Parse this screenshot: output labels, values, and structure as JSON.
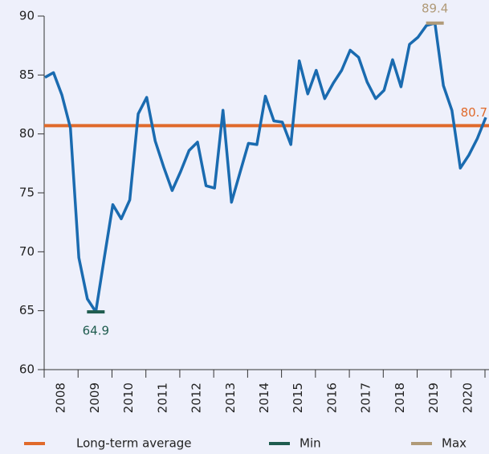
{
  "chart_data": {
    "type": "line",
    "categories": [
      "2008",
      "2009",
      "2010",
      "2011",
      "2012",
      "2013",
      "2014",
      "2015",
      "2016",
      "2017",
      "2018",
      "2019",
      "2020"
    ],
    "x": [
      2008,
      2008.25,
      2008.5,
      2008.75,
      2009,
      2009.25,
      2009.5,
      2009.75,
      2010,
      2010.25,
      2010.5,
      2010.75,
      2011,
      2011.25,
      2011.5,
      2011.75,
      2012,
      2012.25,
      2012.5,
      2012.75,
      2013,
      2013.25,
      2013.5,
      2013.75,
      2014,
      2014.25,
      2014.5,
      2014.75,
      2015,
      2015.25,
      2015.5,
      2015.75,
      2016,
      2016.25,
      2016.5,
      2016.75,
      2017,
      2017.25,
      2017.5,
      2017.75,
      2018,
      2018.25,
      2018.5,
      2018.75,
      2019,
      2019.25,
      2019.5,
      2019.75,
      2020,
      2020.25,
      2020.5,
      2020.75,
      2021
    ],
    "series": [
      {
        "color": "#1a6bb0",
        "values": [
          84.8,
          85.2,
          83.3,
          80.5,
          69.5,
          66,
          64.9,
          69.5,
          74,
          72.8,
          74.4,
          81.7,
          83.1,
          79.4,
          77.2,
          75.2,
          76.8,
          78.6,
          79.3,
          75.6,
          75.4,
          82,
          74.2,
          76.7,
          79.2,
          79.1,
          83.2,
          81.1,
          81,
          79.1,
          86.2,
          83.4,
          85.4,
          83,
          84.3,
          85.4,
          87.1,
          86.5,
          84.4,
          83,
          83.7,
          86.3,
          84,
          87.6,
          88.2,
          89.2,
          89.4,
          84.1,
          82,
          77.1,
          78.2,
          79.6,
          81.4
        ]
      }
    ],
    "average": {
      "name": "Long-term average",
      "value": 80.7,
      "value_label": "80.7",
      "color": "#e06a2b"
    },
    "min": {
      "name": "Min",
      "value": 64.9,
      "value_label": "64.9",
      "color": "#1f5c4f"
    },
    "max": {
      "name": "Max",
      "value": 89.4,
      "value_label": "89.4",
      "color": "#b09a78"
    },
    "xlim": [
      2008,
      2021
    ],
    "ylim": [
      60,
      90
    ],
    "yticks": [
      60,
      65,
      70,
      75,
      80,
      85,
      90
    ]
  }
}
